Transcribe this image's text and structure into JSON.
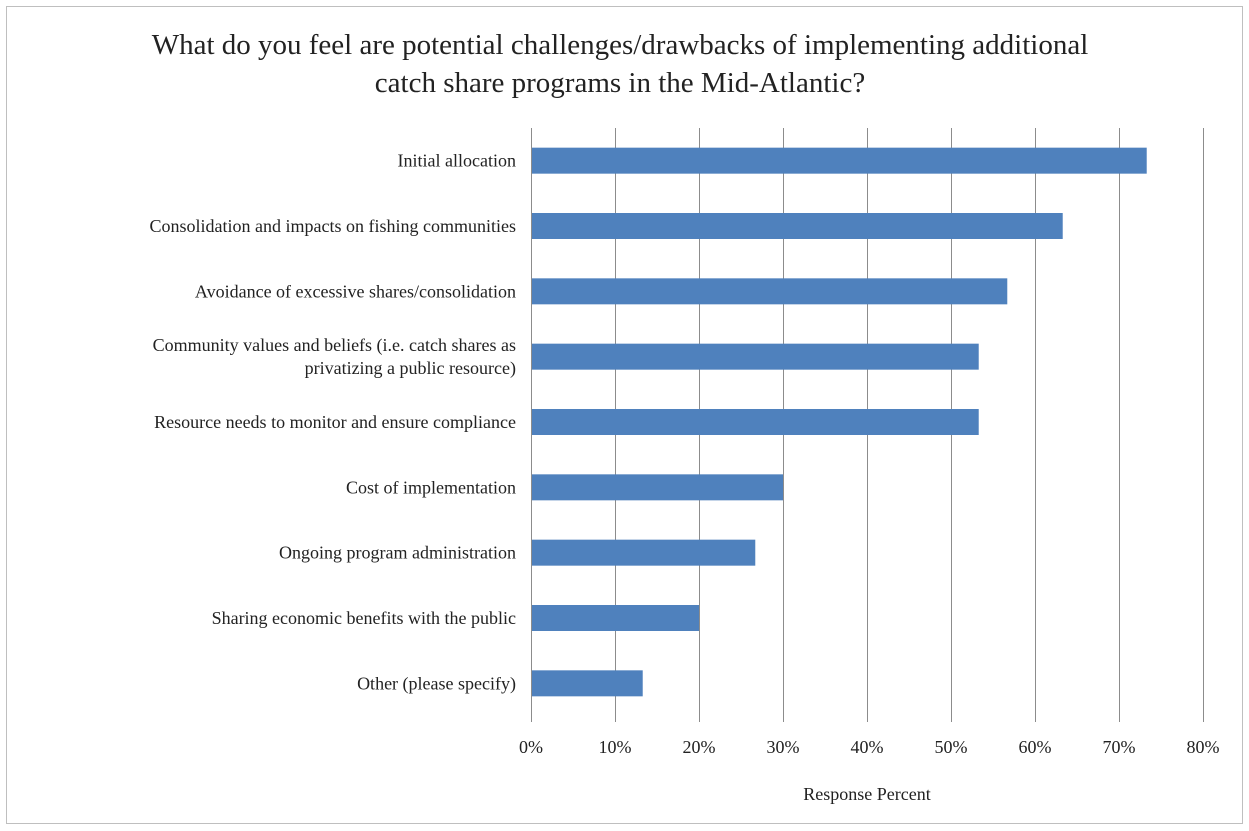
{
  "chart_data": {
    "type": "bar",
    "orientation": "horizontal",
    "title": "What do you feel are potential challenges/drawbacks of implementing additional catch share programs in the Mid-Atlantic?",
    "xlabel": "Response Percent",
    "ylabel": "",
    "categories": [
      [
        "Initial allocation"
      ],
      [
        "Consolidation and impacts on fishing communities"
      ],
      [
        "Avoidance of excessive shares/consolidation"
      ],
      [
        "Community values and beliefs (i.e. catch shares as",
        "privatizing a public resource)"
      ],
      [
        "Resource needs to monitor and ensure compliance"
      ],
      [
        "Cost of implementation"
      ],
      [
        "Ongoing program administration"
      ],
      [
        "Sharing economic benefits with the public"
      ],
      [
        "Other (please specify)"
      ]
    ],
    "values": [
      73.3,
      63.3,
      56.7,
      53.3,
      53.3,
      30.0,
      26.7,
      20.0,
      13.3
    ],
    "xlim": [
      0,
      80
    ],
    "xticks": [
      "0%",
      "10%",
      "20%",
      "30%",
      "40%",
      "50%",
      "60%",
      "70%",
      "80%"
    ],
    "grid": true,
    "legend": "none",
    "bar_color": "#4f81bd"
  }
}
